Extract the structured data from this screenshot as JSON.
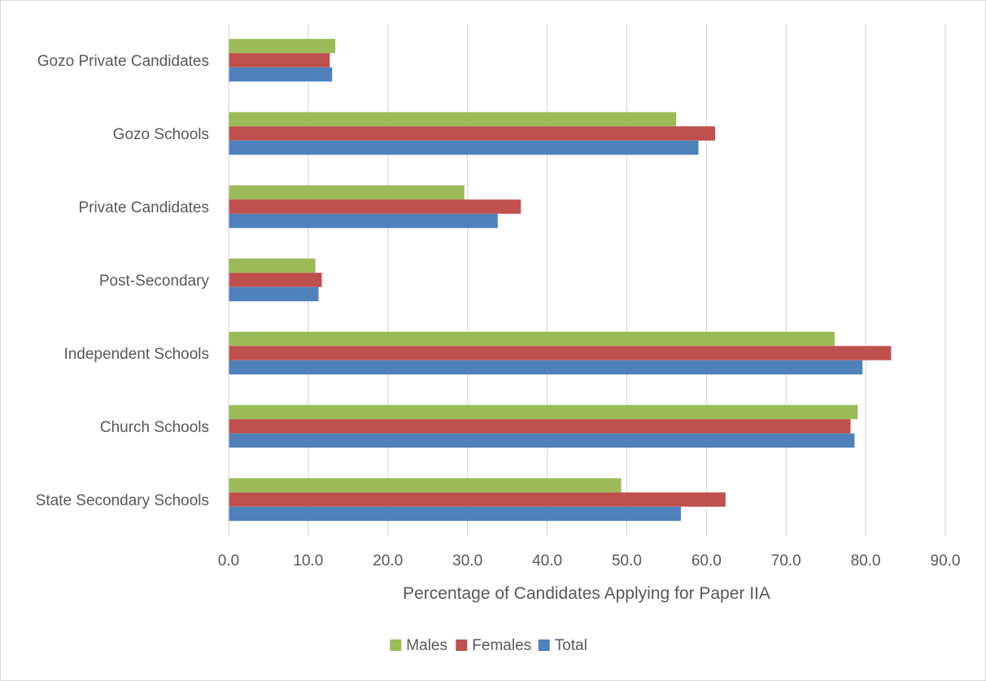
{
  "chart_data": {
    "type": "bar",
    "orientation": "horizontal",
    "title": "",
    "xlabel": "Percentage of Candidates Applying for Paper IIA",
    "ylabel": "",
    "xlim": [
      0,
      90
    ],
    "x_ticks": [
      "0.0",
      "10.0",
      "20.0",
      "30.0",
      "40.0",
      "50.0",
      "60.0",
      "70.0",
      "80.0",
      "90.0"
    ],
    "grid": true,
    "legend_position": "bottom",
    "categories": [
      "Gozo Private Candidates",
      "Gozo Schools",
      "Private Candidates",
      "Post-Secondary",
      "Independent Schools",
      "Church Schools",
      "State Secondary Schools"
    ],
    "series": [
      {
        "name": "Males",
        "color": "#9BBB59",
        "values": [
          13.4,
          56.2,
          29.6,
          10.9,
          76.1,
          79.0,
          49.3
        ]
      },
      {
        "name": "Females",
        "color": "#C0504D",
        "values": [
          12.7,
          61.1,
          36.7,
          11.7,
          83.2,
          78.1,
          62.4
        ]
      },
      {
        "name": "Total",
        "color": "#4F81BD",
        "values": [
          13.0,
          59.0,
          33.8,
          11.3,
          79.6,
          78.6,
          56.8
        ]
      }
    ]
  }
}
